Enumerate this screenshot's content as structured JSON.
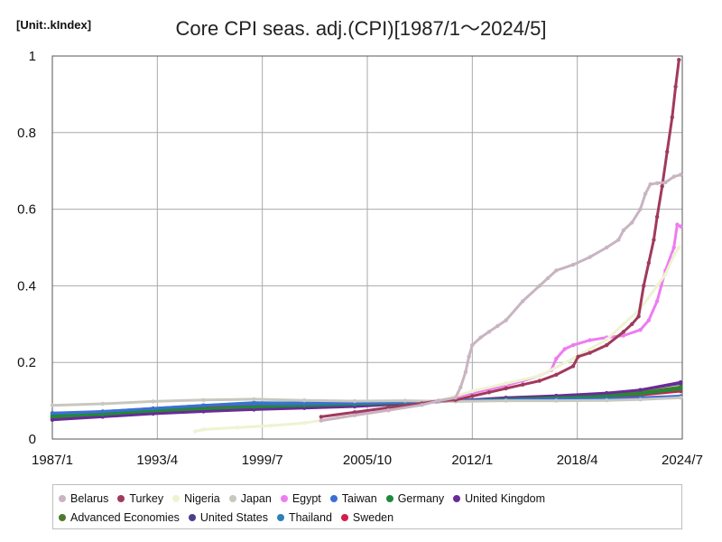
{
  "unit_label": "[Unit:.kIndex]",
  "chart_data": {
    "type": "line",
    "title": "Core CPI seas. adj.(CPI)[1987/1～2024/5]",
    "xlabel": "",
    "ylabel": "",
    "xlim": [
      1987.0,
      2024.5
    ],
    "ylim": [
      0,
      1
    ],
    "x_ticks": [
      {
        "value": 1987.0,
        "label": "1987/1"
      },
      {
        "value": 1993.25,
        "label": "1993/4"
      },
      {
        "value": 1999.5,
        "label": "1999/7"
      },
      {
        "value": 2005.75,
        "label": "2005/10"
      },
      {
        "value": 2012.0,
        "label": "2012/1"
      },
      {
        "value": 2018.25,
        "label": "2018/4"
      },
      {
        "value": 2024.5,
        "label": "2024/7"
      }
    ],
    "y_ticks": [
      {
        "value": 0,
        "label": "0"
      },
      {
        "value": 0.2,
        "label": "0.2"
      },
      {
        "value": 0.4,
        "label": "0.4"
      },
      {
        "value": 0.6,
        "label": "0.6"
      },
      {
        "value": 0.8,
        "label": "0.8"
      },
      {
        "value": 1,
        "label": "1"
      }
    ],
    "grid": true,
    "legend_position": "bottom",
    "series": [
      {
        "name": "Belarus",
        "color": "#c9b4c2",
        "x": [
          2003.0,
          2005.0,
          2007.0,
          2009.0,
          2010.0,
          2011.0,
          2011.3,
          2011.6,
          2011.8,
          2012.0,
          2012.5,
          2013.0,
          2013.5,
          2014.0,
          2015.0,
          2016.0,
          2016.5,
          2017.0,
          2018.0,
          2019.0,
          2020.0,
          2020.7,
          2021.0,
          2021.5,
          2022.0,
          2022.3,
          2022.6,
          2023.0,
          2023.5,
          2024.0,
          2024.4
        ],
        "y": [
          0.048,
          0.062,
          0.075,
          0.089,
          0.1,
          0.108,
          0.135,
          0.175,
          0.215,
          0.245,
          0.265,
          0.28,
          0.295,
          0.31,
          0.36,
          0.4,
          0.42,
          0.44,
          0.455,
          0.475,
          0.5,
          0.52,
          0.545,
          0.565,
          0.6,
          0.64,
          0.665,
          0.668,
          0.67,
          0.685,
          0.69
        ]
      },
      {
        "name": "Turkey",
        "color": "#a03a5c",
        "x": [
          2003.0,
          2005.0,
          2007.0,
          2009.0,
          2010.0,
          2011.0,
          2012.0,
          2013.0,
          2014.0,
          2015.0,
          2016.0,
          2017.0,
          2018.0,
          2018.3,
          2019.0,
          2020.0,
          2021.0,
          2021.5,
          2021.9,
          2022.2,
          2022.5,
          2022.8,
          2023.0,
          2023.3,
          2023.6,
          2023.9,
          2024.1,
          2024.3
        ],
        "y": [
          0.058,
          0.07,
          0.082,
          0.093,
          0.1,
          0.102,
          0.112,
          0.122,
          0.132,
          0.142,
          0.152,
          0.168,
          0.19,
          0.215,
          0.225,
          0.245,
          0.28,
          0.3,
          0.32,
          0.4,
          0.46,
          0.52,
          0.58,
          0.66,
          0.75,
          0.84,
          0.92,
          0.99
        ]
      },
      {
        "name": "Nigeria",
        "color": "#eef3d2",
        "x": [
          1995.5,
          1996.0,
          1998.0,
          2000.0,
          2002.0,
          2004.0,
          2006.0,
          2008.0,
          2010.0,
          2012.0,
          2014.0,
          2016.0,
          2018.0,
          2020.0,
          2021.0,
          2022.0,
          2023.0,
          2023.5,
          2024.0,
          2024.3
        ],
        "y": [
          0.02,
          0.025,
          0.03,
          0.035,
          0.042,
          0.055,
          0.068,
          0.082,
          0.1,
          0.125,
          0.145,
          0.165,
          0.21,
          0.26,
          0.3,
          0.34,
          0.4,
          0.43,
          0.48,
          0.5
        ]
      },
      {
        "name": "Japan",
        "color": "#c8c8c0",
        "x": [
          1987.0,
          1990.0,
          1993.0,
          1996.0,
          1999.0,
          2002.0,
          2005.0,
          2008.0,
          2011.0,
          2014.0,
          2017.0,
          2020.0,
          2022.0,
          2024.4
        ],
        "y": [
          0.088,
          0.092,
          0.098,
          0.102,
          0.104,
          0.101,
          0.099,
          0.1,
          0.098,
          0.1,
          0.1,
          0.101,
          0.103,
          0.108
        ]
      },
      {
        "name": "Egypt",
        "color": "#ee7cf0",
        "x": [
          2005.0,
          2007.0,
          2009.0,
          2010.0,
          2011.0,
          2012.0,
          2013.0,
          2014.0,
          2015.0,
          2016.0,
          2016.7,
          2017.0,
          2017.5,
          2018.0,
          2019.0,
          2020.0,
          2021.0,
          2022.0,
          2022.5,
          2023.0,
          2023.5,
          2024.0,
          2024.2,
          2024.4
        ],
        "y": [
          0.065,
          0.075,
          0.09,
          0.1,
          0.11,
          0.12,
          0.13,
          0.14,
          0.152,
          0.165,
          0.18,
          0.21,
          0.235,
          0.245,
          0.258,
          0.265,
          0.27,
          0.285,
          0.31,
          0.36,
          0.44,
          0.5,
          0.56,
          0.555
        ]
      },
      {
        "name": "Taiwan",
        "color": "#3c6fd6",
        "x": [
          1987.0,
          1990.0,
          1993.0,
          1996.0,
          1999.0,
          2002.0,
          2005.0,
          2008.0,
          2011.0,
          2014.0,
          2017.0,
          2020.0,
          2022.0,
          2024.4
        ],
        "y": [
          0.068,
          0.072,
          0.08,
          0.088,
          0.092,
          0.092,
          0.093,
          0.096,
          0.1,
          0.102,
          0.104,
          0.105,
          0.108,
          0.112
        ]
      },
      {
        "name": "Germany",
        "color": "#1e8a3a",
        "x": [
          1987.0,
          1990.0,
          1993.0,
          1996.0,
          1999.0,
          2002.0,
          2005.0,
          2008.0,
          2011.0,
          2014.0,
          2017.0,
          2020.0,
          2022.0,
          2024.4
        ],
        "y": [
          0.06,
          0.064,
          0.074,
          0.08,
          0.084,
          0.087,
          0.09,
          0.094,
          0.1,
          0.104,
          0.108,
          0.112,
          0.118,
          0.13
        ]
      },
      {
        "name": "United Kingdom",
        "color": "#6a2a98",
        "x": [
          1987.0,
          1990.0,
          1993.0,
          1996.0,
          1999.0,
          2002.0,
          2005.0,
          2008.0,
          2011.0,
          2014.0,
          2017.0,
          2020.0,
          2022.0,
          2024.4
        ],
        "y": [
          0.05,
          0.058,
          0.066,
          0.072,
          0.077,
          0.081,
          0.085,
          0.092,
          0.1,
          0.108,
          0.113,
          0.12,
          0.128,
          0.148
        ]
      },
      {
        "name": "Advanced Economies",
        "color": "#4b7a2a",
        "x": [
          1987.0,
          1990.0,
          1993.0,
          1996.0,
          1999.0,
          2002.0,
          2005.0,
          2008.0,
          2011.0,
          2014.0,
          2017.0,
          2020.0,
          2022.0,
          2024.4
        ],
        "y": [
          0.054,
          0.062,
          0.07,
          0.077,
          0.082,
          0.086,
          0.09,
          0.095,
          0.1,
          0.105,
          0.11,
          0.114,
          0.122,
          0.136
        ]
      },
      {
        "name": "United States",
        "color": "#4a3f8c",
        "x": [
          1987.0,
          1990.0,
          1993.0,
          1996.0,
          1999.0,
          2002.0,
          2005.0,
          2008.0,
          2011.0,
          2014.0,
          2017.0,
          2020.0,
          2022.0,
          2024.4
        ],
        "y": [
          0.055,
          0.062,
          0.069,
          0.075,
          0.08,
          0.084,
          0.088,
          0.094,
          0.1,
          0.106,
          0.112,
          0.118,
          0.128,
          0.145
        ]
      },
      {
        "name": "Thailand",
        "color": "#2e7fb8",
        "x": [
          1987.0,
          1990.0,
          1993.0,
          1996.0,
          1999.0,
          2002.0,
          2005.0,
          2008.0,
          2011.0,
          2014.0,
          2017.0,
          2020.0,
          2022.0,
          2024.4
        ],
        "y": [
          0.065,
          0.072,
          0.08,
          0.088,
          0.095,
          0.094,
          0.095,
          0.097,
          0.1,
          0.103,
          0.105,
          0.105,
          0.108,
          0.11
        ]
      },
      {
        "name": "Sweden",
        "color": "#d0204a",
        "x": [
          1987.0,
          1990.0,
          1993.0,
          1996.0,
          1999.0,
          2002.0,
          2005.0,
          2008.0,
          2011.0,
          2014.0,
          2017.0,
          2020.0,
          2022.0,
          2024.4
        ],
        "y": [
          0.06,
          0.068,
          0.078,
          0.083,
          0.086,
          0.088,
          0.091,
          0.095,
          0.1,
          0.102,
          0.104,
          0.107,
          0.115,
          0.125
        ]
      }
    ]
  }
}
